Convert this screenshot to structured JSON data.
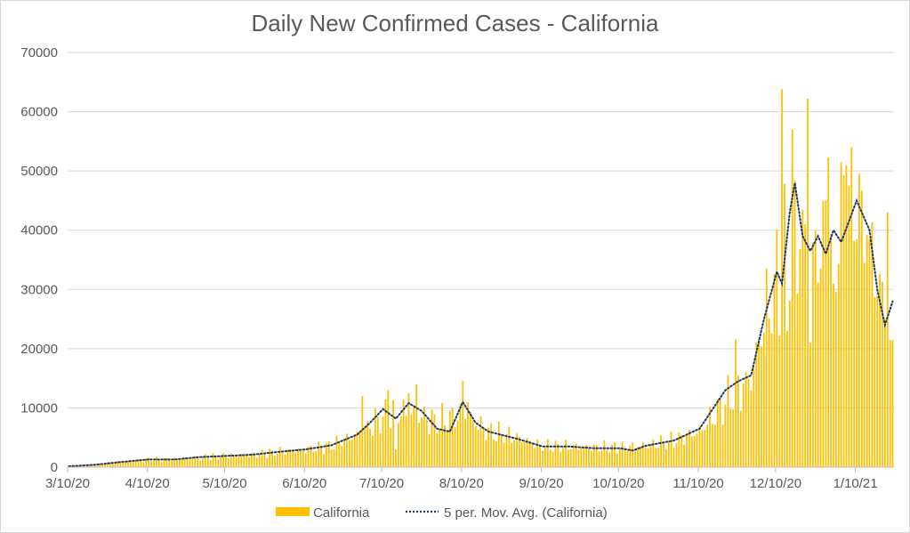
{
  "chart_data": {
    "type": "bar",
    "title": "Daily New Confirmed Cases - California",
    "xlabel": "",
    "ylabel": "",
    "ylim": [
      0,
      70000
    ],
    "yticks": [
      "0",
      "10000",
      "20000",
      "30000",
      "40000",
      "50000",
      "60000",
      "70000"
    ],
    "xticks": [
      "3/10/20",
      "4/10/20",
      "5/10/20",
      "6/10/20",
      "7/10/20",
      "8/10/20",
      "9/10/20",
      "10/10/20",
      "11/10/20",
      "12/10/20",
      "1/10/21"
    ],
    "x_start": "3/10/20",
    "x_end": "1/24/21",
    "grid": "horizontal",
    "legend_position": "bottom",
    "colors": {
      "bars": "#FFC000",
      "moving_average": "#1F3864",
      "grid": "#d9d9d9",
      "axis": "#bfbfbf",
      "text": "#595959"
    },
    "series": [
      {
        "name": "California",
        "type": "bar",
        "anchors": [
          [
            "3/10/20",
            150
          ],
          [
            "3/20/20",
            400
          ],
          [
            "3/31/20",
            1000
          ],
          [
            "4/10/20",
            1300
          ],
          [
            "4/20/20",
            1300
          ],
          [
            "4/30/20",
            1700
          ],
          [
            "5/10/20",
            1900
          ],
          [
            "5/20/20",
            2100
          ],
          [
            "5/31/20",
            2600
          ],
          [
            "6/10/20",
            3000
          ],
          [
            "6/20/20",
            3600
          ],
          [
            "6/30/20",
            5500
          ],
          [
            "7/10/20",
            8500
          ],
          [
            "7/20/20",
            9500
          ],
          [
            "7/31/20",
            7500
          ],
          [
            "8/10/20",
            9000
          ],
          [
            "8/20/20",
            6000
          ],
          [
            "8/31/20",
            5000
          ],
          [
            "9/10/20",
            3500
          ],
          [
            "9/20/20",
            3500
          ],
          [
            "9/30/20",
            3300
          ],
          [
            "10/10/20",
            3300
          ],
          [
            "10/20/20",
            3600
          ],
          [
            "10/31/20",
            4500
          ],
          [
            "11/10/20",
            6000
          ],
          [
            "11/20/20",
            11000
          ],
          [
            "11/30/20",
            15000
          ],
          [
            "12/5/20",
            25000
          ],
          [
            "12/10/20",
            31000
          ],
          [
            "12/15/20",
            40000
          ],
          [
            "12/20/20",
            38000
          ],
          [
            "12/25/20",
            36000
          ],
          [
            "12/30/20",
            38000
          ],
          [
            "1/5/21",
            42000
          ],
          [
            "1/10/21",
            45000
          ],
          [
            "1/15/21",
            38000
          ],
          [
            "1/20/21",
            27000
          ],
          [
            "1/24/21",
            24000
          ]
        ],
        "spikes": [
          [
            "7/2/20",
            12000
          ],
          [
            "7/12/20",
            13000
          ],
          [
            "7/20/20",
            12500
          ],
          [
            "7/23/20",
            14000
          ],
          [
            "8/10/20",
            14500
          ],
          [
            "8/12/20",
            11000
          ],
          [
            "11/24/20",
            21500
          ],
          [
            "12/12/20",
            63800
          ],
          [
            "12/16/20",
            57000
          ],
          [
            "12/20/20",
            43500
          ],
          [
            "12/22/20",
            62200
          ],
          [
            "12/29/20",
            45000
          ],
          [
            "12/30/20",
            52300
          ],
          [
            "1/5/21",
            49300
          ],
          [
            "1/6/21",
            51000
          ],
          [
            "1/21/21",
            25000
          ],
          [
            "1/22/21",
            43000
          ],
          [
            "1/23/21",
            21500
          ],
          [
            "1/24/21",
            21500
          ]
        ],
        "dips": [
          [
            "7/15/20",
            3000
          ],
          [
            "12/14/20",
            23000
          ],
          [
            "12/23/20",
            21000
          ],
          [
            "1/1/21",
            31000
          ]
        ]
      },
      {
        "name": "5 per. Mov. Avg. (California)",
        "type": "line",
        "style": "dotted",
        "anchors": [
          [
            "3/10/20",
            150
          ],
          [
            "3/20/20",
            400
          ],
          [
            "3/31/20",
            900
          ],
          [
            "4/10/20",
            1300
          ],
          [
            "4/20/20",
            1300
          ],
          [
            "4/30/20",
            1700
          ],
          [
            "5/10/20",
            1900
          ],
          [
            "5/20/20",
            2100
          ],
          [
            "5/31/20",
            2600
          ],
          [
            "6/10/20",
            3000
          ],
          [
            "6/20/20",
            3700
          ],
          [
            "6/30/20",
            5500
          ],
          [
            "7/5/20",
            7500
          ],
          [
            "7/10/20",
            9800
          ],
          [
            "7/15/20",
            8200
          ],
          [
            "7/20/20",
            10800
          ],
          [
            "7/25/20",
            9500
          ],
          [
            "7/31/20",
            6500
          ],
          [
            "8/5/20",
            6000
          ],
          [
            "8/10/20",
            11000
          ],
          [
            "8/15/20",
            7500
          ],
          [
            "8/20/20",
            6000
          ],
          [
            "8/31/20",
            4800
          ],
          [
            "9/10/20",
            3500
          ],
          [
            "9/20/20",
            3500
          ],
          [
            "9/30/20",
            3200
          ],
          [
            "10/10/20",
            3200
          ],
          [
            "10/15/20",
            2800
          ],
          [
            "10/20/20",
            3600
          ],
          [
            "10/31/20",
            4500
          ],
          [
            "11/10/20",
            6500
          ],
          [
            "11/20/20",
            13000
          ],
          [
            "11/25/20",
            14500
          ],
          [
            "11/30/20",
            15500
          ],
          [
            "12/5/20",
            25000
          ],
          [
            "12/10/20",
            33000
          ],
          [
            "12/12/20",
            31000
          ],
          [
            "12/15/20",
            43000
          ],
          [
            "12/17/20",
            48000
          ],
          [
            "12/20/20",
            39000
          ],
          [
            "12/23/20",
            36500
          ],
          [
            "12/26/20",
            39000
          ],
          [
            "12/29/20",
            36000
          ],
          [
            "1/1/21",
            40000
          ],
          [
            "1/4/21",
            38000
          ],
          [
            "1/10/21",
            45000
          ],
          [
            "1/15/21",
            40000
          ],
          [
            "1/18/21",
            30000
          ],
          [
            "1/21/21",
            24000
          ],
          [
            "1/24/21",
            28000
          ]
        ]
      }
    ]
  }
}
